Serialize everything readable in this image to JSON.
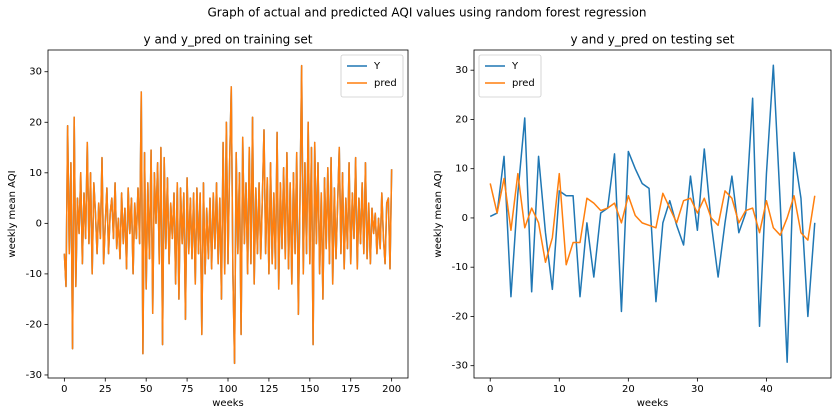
{
  "title": "Graph of actual and predicted AQI values using random forest regression",
  "chart_data": [
    {
      "type": "line",
      "title": "y and y_pred on training set",
      "xlabel": "weeks",
      "ylabel": "weekly mean AQI",
      "x": [
        0,
        1,
        2,
        3,
        4,
        5,
        6,
        7,
        8,
        9,
        10,
        11,
        12,
        13,
        14,
        15,
        16,
        17,
        18,
        19,
        20,
        21,
        22,
        23,
        24,
        25,
        26,
        27,
        28,
        29,
        30,
        31,
        32,
        33,
        34,
        35,
        36,
        37,
        38,
        39,
        40,
        41,
        42,
        43,
        44,
        45,
        46,
        47,
        48,
        49,
        50,
        51,
        52,
        53,
        54,
        55,
        56,
        57,
        58,
        59,
        60,
        61,
        62,
        63,
        64,
        65,
        66,
        67,
        68,
        69,
        70,
        71,
        72,
        73,
        74,
        75,
        76,
        77,
        78,
        79,
        80,
        81,
        82,
        83,
        84,
        85,
        86,
        87,
        88,
        89,
        90,
        91,
        92,
        93,
        94,
        95,
        96,
        97,
        98,
        99,
        100,
        101,
        102,
        103,
        104,
        105,
        106,
        107,
        108,
        109,
        110,
        111,
        112,
        113,
        114,
        115,
        116,
        117,
        118,
        119,
        120,
        121,
        122,
        123,
        124,
        125,
        126,
        127,
        128,
        129,
        130,
        131,
        132,
        133,
        134,
        135,
        136,
        137,
        138,
        139,
        140,
        141,
        142,
        143,
        144,
        145,
        146,
        147,
        148,
        149,
        150,
        151,
        152,
        153,
        154,
        155,
        156,
        157,
        158,
        159,
        160,
        161,
        162,
        163,
        164,
        165,
        166,
        167,
        168,
        169,
        170,
        171,
        172,
        173,
        174,
        175,
        176,
        177,
        178,
        179,
        180,
        181,
        182,
        183,
        184,
        185,
        186,
        187,
        188,
        189,
        190,
        191,
        192,
        193,
        194,
        195,
        196,
        197,
        198,
        199,
        200
      ],
      "series": [
        {
          "name": "Y",
          "color": "#1f77b4",
          "values": [
            -6,
            -12.5,
            19.3,
            -6,
            12,
            -24.8,
            21,
            -12.5,
            5,
            -2,
            10,
            -8,
            6,
            -3,
            16,
            -4,
            10,
            -10,
            8,
            2,
            -6,
            4,
            -3,
            13,
            -8,
            0,
            7,
            -6,
            2,
            5,
            -3,
            8,
            -5,
            1,
            -7,
            6,
            -4,
            3,
            -9,
            7,
            -2,
            5,
            -10,
            4,
            -3,
            7,
            -4,
            26,
            -25.8,
            14,
            -13,
            8,
            -7,
            14.5,
            -17.8,
            10,
            0,
            12,
            -8,
            15,
            -24,
            13,
            -5,
            9,
            -8,
            4,
            -3,
            6,
            -12,
            8,
            -15,
            7,
            -4,
            6,
            -19,
            9,
            -6,
            5,
            -7,
            6,
            -12,
            7,
            -6,
            6,
            -22,
            8,
            -10,
            3,
            -7,
            5,
            -9,
            6,
            -5,
            8,
            -8,
            5,
            -15,
            16,
            -10,
            20,
            -8,
            12,
            27,
            -10,
            -27.7,
            14,
            -6,
            10,
            -22,
            17,
            -4,
            8,
            -10,
            15,
            -8,
            21,
            -12,
            7,
            -6,
            8,
            -7,
            5,
            18.5,
            -6,
            9,
            -10,
            12,
            -8,
            6,
            -9,
            18,
            -13,
            8,
            -5,
            11,
            -7,
            14,
            -9,
            8,
            -12,
            10,
            -6,
            14,
            -18,
            5,
            31.2,
            -10,
            12,
            -6,
            20,
            -8,
            15,
            -24,
            16,
            -4,
            12,
            -10,
            6,
            -15,
            9,
            -5,
            11,
            -8,
            13,
            -12,
            7,
            -7,
            4,
            15,
            -6,
            10,
            -9,
            5,
            -5,
            12,
            -8,
            6,
            -3,
            13,
            -9,
            5,
            -4,
            8,
            -6,
            12,
            -7,
            4,
            -8,
            3,
            -2,
            2,
            -6,
            1,
            -5,
            6,
            -3,
            -8,
            4,
            5,
            -9,
            10.7
          ]
        },
        {
          "name": "pred",
          "color": "#ff7f0e",
          "values": [
            -6,
            -12.5,
            19.3,
            -6,
            12,
            -24.8,
            21,
            -12.5,
            5,
            -2,
            10,
            -8,
            6,
            -3,
            16,
            -4,
            10,
            -10,
            8,
            2,
            -6,
            4,
            -3,
            13,
            -8,
            0,
            7,
            -6,
            2,
            5,
            -3,
            8,
            -5,
            1,
            -7,
            6,
            -4,
            3,
            -9,
            7,
            -2,
            5,
            -10,
            4,
            -3,
            7,
            -4,
            26,
            -25.8,
            14,
            -13,
            8,
            -7,
            14.5,
            -17.8,
            10,
            0,
            12,
            -8,
            15,
            -24,
            13,
            -5,
            9,
            -8,
            4,
            -3,
            6,
            -12,
            8,
            -15,
            7,
            -4,
            6,
            -19,
            9,
            -6,
            5,
            -7,
            6,
            -12,
            7,
            -6,
            6,
            -22,
            8,
            -10,
            3,
            -7,
            5,
            -9,
            6,
            -5,
            8,
            -8,
            5,
            -15,
            16,
            -10,
            20,
            -8,
            12,
            27,
            -10,
            -27.7,
            14,
            -6,
            10,
            -22,
            17,
            -4,
            8,
            -10,
            15,
            -8,
            21,
            -12,
            7,
            -6,
            8,
            -7,
            5,
            18.5,
            -6,
            9,
            -10,
            12,
            -8,
            6,
            -9,
            18,
            -13,
            8,
            -5,
            11,
            -7,
            14,
            -9,
            8,
            -12,
            10,
            -6,
            14,
            -18,
            5,
            31.2,
            -10,
            12,
            -6,
            20,
            -8,
            15,
            -24,
            16,
            -4,
            12,
            -10,
            6,
            -15,
            9,
            -5,
            11,
            -8,
            13,
            -12,
            7,
            -7,
            4,
            15,
            -6,
            10,
            -9,
            5,
            -5,
            12,
            -8,
            6,
            -3,
            13,
            -9,
            5,
            -4,
            8,
            -6,
            12,
            -7,
            4,
            -8,
            3,
            -2,
            2,
            -6,
            1,
            -5,
            6,
            -3,
            -8,
            4,
            5,
            -9,
            10.7
          ]
        }
      ],
      "xlim": [
        -10,
        210
      ],
      "xticks": [
        0,
        25,
        50,
        75,
        100,
        125,
        150,
        175,
        200
      ],
      "ylim": [
        -30.6,
        34.3
      ],
      "yticks": [
        -30,
        -20,
        -10,
        0,
        10,
        20,
        30
      ],
      "legend": "upper right"
    },
    {
      "type": "line",
      "title": "y and y_pred on testing set",
      "xlabel": "weeks",
      "ylabel": "weekly mean AQI",
      "x": [
        0,
        1,
        2,
        3,
        4,
        5,
        6,
        7,
        8,
        9,
        10,
        11,
        12,
        13,
        14,
        15,
        16,
        17,
        18,
        19,
        20,
        21,
        22,
        23,
        24,
        25,
        26,
        27,
        28,
        29,
        30,
        31,
        32,
        33,
        34,
        35,
        36,
        37,
        38,
        39,
        40,
        41,
        42,
        43,
        44,
        45,
        46,
        47
      ],
      "series": [
        {
          "name": "Y",
          "color": "#1f77b4",
          "values": [
            0.3,
            1,
            12.5,
            -16,
            5,
            20.3,
            -15,
            12.5,
            -3,
            -14.5,
            5.5,
            4.5,
            4.5,
            -16,
            -1,
            -12,
            1,
            2,
            13,
            -19,
            13.5,
            10,
            7,
            6,
            -17,
            -1,
            3.5,
            -1.5,
            -5.5,
            8.5,
            -2.5,
            14,
            -1,
            -12,
            -1,
            8.5,
            -3,
            1,
            24.3,
            -22,
            9,
            31,
            3,
            -29.3,
            13.3,
            4,
            -20,
            -1
          ]
        },
        {
          "name": "pred",
          "color": "#ff7f0e",
          "values": [
            7,
            1,
            8,
            -2.5,
            9,
            -2,
            2,
            -1,
            -9,
            -4,
            9,
            -9.5,
            -5,
            -5,
            4,
            3,
            1.5,
            2,
            3,
            -1,
            4.5,
            0.5,
            -1,
            -1.5,
            -2,
            5,
            2,
            -1,
            3.5,
            4,
            1,
            4,
            0,
            -1.5,
            5.5,
            4,
            -1,
            1.5,
            2,
            -3,
            3.5,
            -2,
            -3.5,
            0,
            4.5,
            -3,
            -4.5,
            4.5
          ]
        }
      ],
      "xlim": [
        -2.35,
        49.35
      ],
      "xticks": [
        0,
        10,
        20,
        30,
        40
      ],
      "ylim": [
        -32.5,
        34.1
      ],
      "yticks": [
        -30,
        -20,
        -10,
        0,
        10,
        20,
        30
      ],
      "legend": "upper left"
    }
  ]
}
